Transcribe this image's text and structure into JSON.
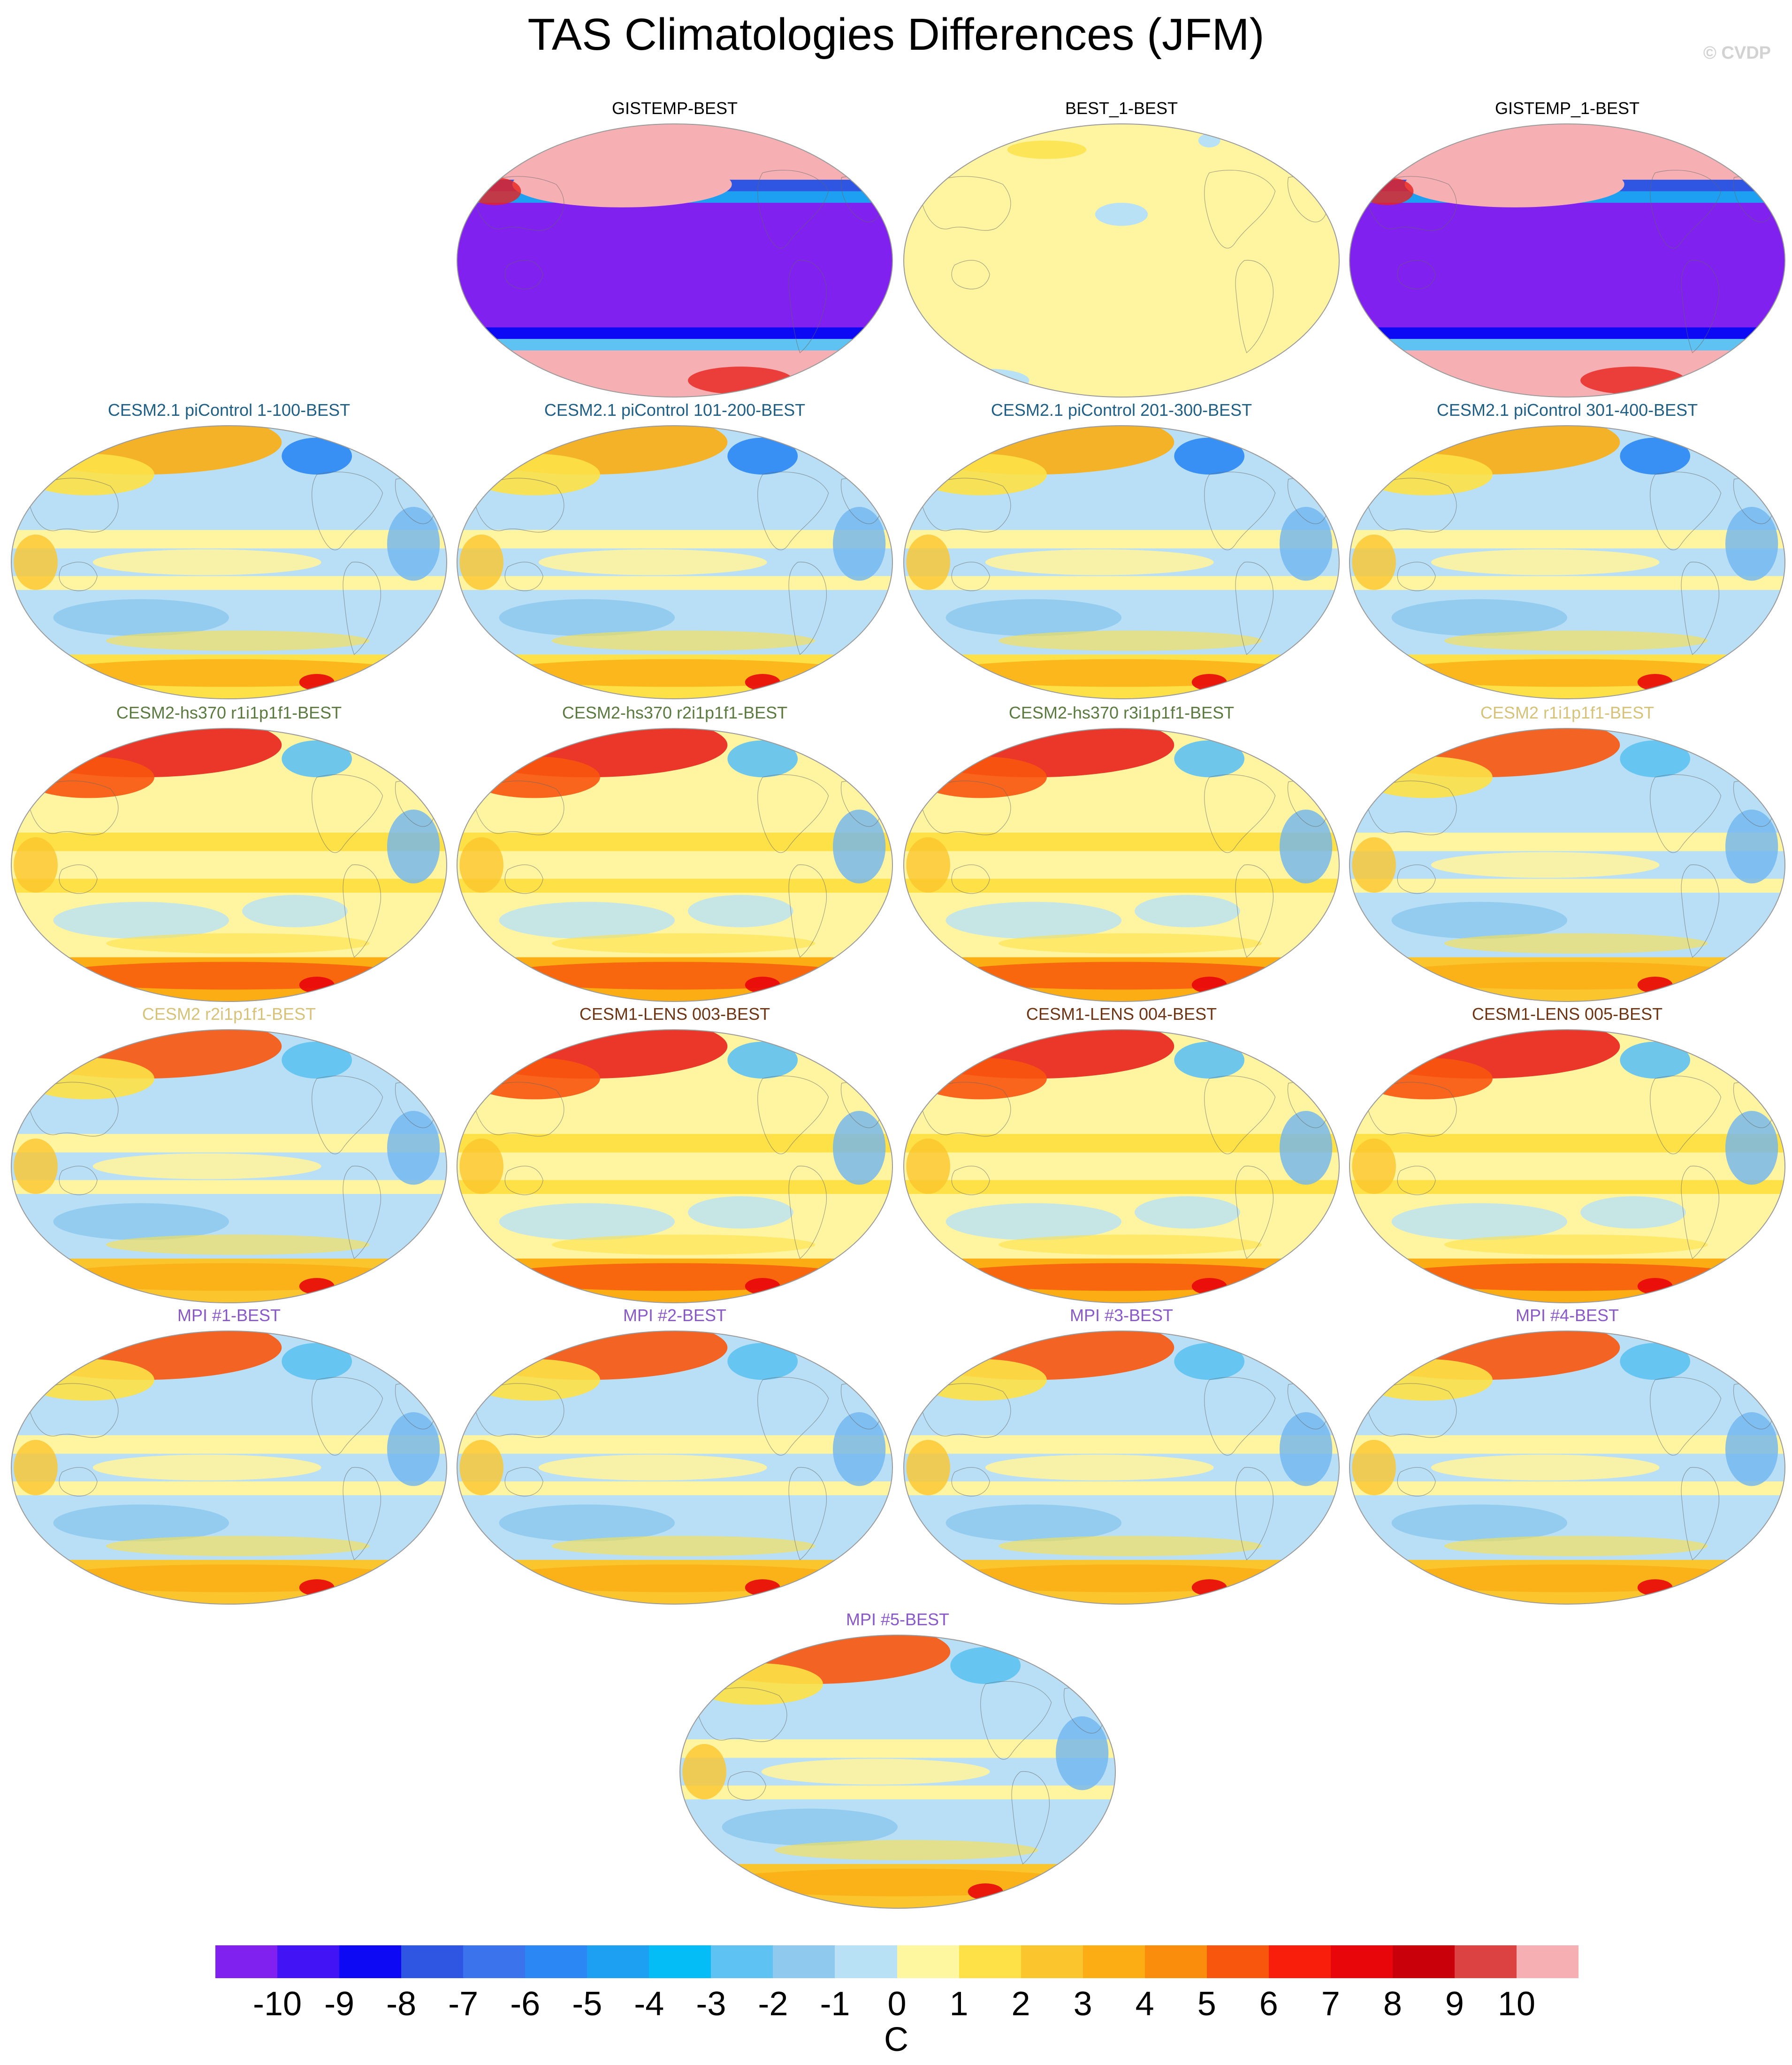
{
  "title": "TAS Climatologies Differences (JFM)",
  "watermark": "© CVDP",
  "palette": {
    "pink": "#f6b0b4",
    "purple": "#8021f0",
    "land": "#c8b48a",
    "map_pale": "#fff4a0",
    "map_lightblue": "#b8dff5",
    "map_midblue": "#6fb5f0",
    "map_orange": "#fbb53a",
    "map_red": "#e8221c"
  },
  "panels": [
    {
      "title": "GISTEMP-BEST",
      "title_color": "#000000",
      "style": "obs"
    },
    {
      "title": "BEST_1-BEST",
      "title_color": "#000000",
      "style": "pale"
    },
    {
      "title": "GISTEMP_1-BEST",
      "title_color": "#000000",
      "style": "obs"
    },
    {
      "title": "CESM2.1 piControl 1-100-BEST",
      "title_color": "#1f5f85",
      "style": "cool"
    },
    {
      "title": "CESM2.1 piControl 101-200-BEST",
      "title_color": "#1f5f85",
      "style": "cool"
    },
    {
      "title": "CESM2.1 piControl 201-300-BEST",
      "title_color": "#1f5f85",
      "style": "cool"
    },
    {
      "title": "CESM2.1 piControl 301-400-BEST",
      "title_color": "#1f5f85",
      "style": "cool"
    },
    {
      "title": "CESM2-hs370 r1i1p1f1-BEST",
      "title_color": "#5a7a40",
      "style": "warm"
    },
    {
      "title": "CESM2-hs370 r2i1p1f1-BEST",
      "title_color": "#5a7a40",
      "style": "warm"
    },
    {
      "title": "CESM2-hs370 r3i1p1f1-BEST",
      "title_color": "#5a7a40",
      "style": "warm"
    },
    {
      "title": "CESM2 r1i1p1f1-BEST",
      "title_color": "#d7c27a",
      "style": "mixed"
    },
    {
      "title": "CESM2 r2i1p1f1-BEST",
      "title_color": "#d7c27a",
      "style": "mixed"
    },
    {
      "title": "CESM1-LENS 003-BEST",
      "title_color": "#6e3515",
      "style": "warm"
    },
    {
      "title": "CESM1-LENS 004-BEST",
      "title_color": "#6e3515",
      "style": "warm"
    },
    {
      "title": "CESM1-LENS 005-BEST",
      "title_color": "#6e3515",
      "style": "warm"
    },
    {
      "title": "MPI #1-BEST",
      "title_color": "#8a59c9",
      "style": "mixed"
    },
    {
      "title": "MPI #2-BEST",
      "title_color": "#8a59c9",
      "style": "mixed"
    },
    {
      "title": "MPI #3-BEST",
      "title_color": "#8a59c9",
      "style": "mixed"
    },
    {
      "title": "MPI #4-BEST",
      "title_color": "#8a59c9",
      "style": "mixed"
    },
    {
      "title": "MPI #5-BEST",
      "title_color": "#8a59c9",
      "style": "mixed"
    }
  ],
  "colorbar": {
    "colors": [
      "#8021f0",
      "#4213f5",
      "#0d09f5",
      "#2e56e3",
      "#3a73ec",
      "#2a87f4",
      "#1ea0f2",
      "#05bdf6",
      "#5ec2f2",
      "#8fcaee",
      "#b8e1f6",
      "#fff7a0",
      "#fde146",
      "#fbc52d",
      "#fbad13",
      "#fa8d0b",
      "#f8550d",
      "#f91d0b",
      "#e8060a",
      "#c9000a",
      "#dd4242",
      "#f6b0b4"
    ],
    "labels": [
      "-10",
      "-9",
      "-8",
      "-7",
      "-6",
      "-5",
      "-4",
      "-3",
      "-2",
      "-1",
      "0",
      "1",
      "2",
      "3",
      "4",
      "5",
      "6",
      "7",
      "8",
      "9",
      "10"
    ],
    "unit": "C"
  }
}
